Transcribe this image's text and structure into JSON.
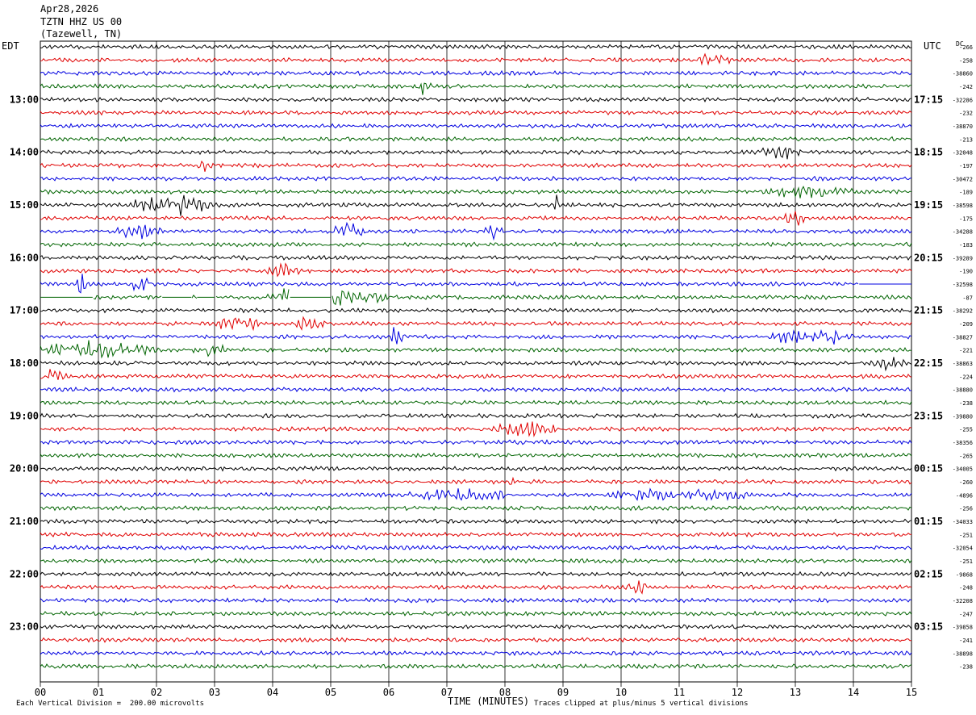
{
  "header": {
    "date": "Apr28,2026",
    "station": "TZTN HHZ US 00",
    "location": "(Tazewell, TN)"
  },
  "left_timezone": "EDT",
  "right_timezone": "UTC",
  "dc_label": "DC",
  "footer": {
    "scale_note": "Each Vertical Division =  200.00 microvolts",
    "clip_note": "Traces clipped at plus/minus 5 vertical divisions"
  },
  "colors": {
    "trace_cycle": [
      "#000000",
      "#e00000",
      "#0000e0",
      "#006400"
    ],
    "grid": "#000000",
    "background": "#ffffff"
  },
  "chart_data": {
    "type": "line",
    "description_of_axes": "helicorder",
    "xlabel": "TIME (MINUTES)",
    "x_ticks": [
      "00",
      "01",
      "02",
      "03",
      "04",
      "05",
      "06",
      "07",
      "08",
      "09",
      "10",
      "11",
      "12",
      "13",
      "14",
      "15"
    ],
    "xlim": [
      0,
      15
    ],
    "trace_count": 48,
    "left_hour_labels": [
      {
        "row": 4,
        "label": "13:00"
      },
      {
        "row": 8,
        "label": "14:00"
      },
      {
        "row": 12,
        "label": "15:00"
      },
      {
        "row": 16,
        "label": "16:00"
      },
      {
        "row": 20,
        "label": "17:00"
      },
      {
        "row": 24,
        "label": "18:00"
      },
      {
        "row": 28,
        "label": "19:00"
      },
      {
        "row": 32,
        "label": "20:00"
      },
      {
        "row": 36,
        "label": "21:00"
      },
      {
        "row": 40,
        "label": "22:00"
      },
      {
        "row": 44,
        "label": "23:00"
      }
    ],
    "right_hour_labels": [
      {
        "row": 4,
        "label": "17:15"
      },
      {
        "row": 8,
        "label": "18:15"
      },
      {
        "row": 12,
        "label": "19:15"
      },
      {
        "row": 16,
        "label": "20:15"
      },
      {
        "row": 20,
        "label": "21:15"
      },
      {
        "row": 24,
        "label": "22:15"
      },
      {
        "row": 28,
        "label": "23:15"
      },
      {
        "row": 32,
        "label": "00:15"
      },
      {
        "row": 36,
        "label": "01:15"
      },
      {
        "row": 40,
        "label": "02:15"
      },
      {
        "row": 44,
        "label": "03:15"
      }
    ],
    "dc_offsets": [
      "-266",
      "-258",
      "-38860",
      "-242",
      "-32286",
      "-232",
      "-38870",
      "-213",
      "-32048",
      "-197",
      "-30472",
      "-189",
      "-38598",
      "-175",
      "-34288",
      "-183",
      "-39289",
      "-190",
      "-32598",
      "-87",
      "-38292",
      "-209",
      "-38827",
      "-221",
      "-38863",
      "-224",
      "-38880",
      "-238",
      "-39880",
      "-255",
      "-38356",
      "-265",
      "-34005",
      "-260",
      "-4896",
      "-256",
      "-34033",
      "-251",
      "-32054",
      "-251",
      "-9868",
      "-248",
      "-32208",
      "-247",
      "-39858",
      "-241",
      "-38898",
      "-238"
    ],
    "events": [
      {
        "row": 1,
        "minute": 11.6,
        "amp": 1.6,
        "dur": 0.3
      },
      {
        "row": 3,
        "minute": 6.6,
        "amp": 2.2,
        "dur": 0.15
      },
      {
        "row": 9,
        "minute": 2.85,
        "amp": 1.8,
        "dur": 0.15
      },
      {
        "row": 8,
        "minute": 12.8,
        "amp": 1.4,
        "dur": 0.4
      },
      {
        "row": 11,
        "minute": 13.2,
        "amp": 1.4,
        "dur": 0.8
      },
      {
        "row": 12,
        "minute": 2.3,
        "amp": 3.0,
        "dur": 0.8
      },
      {
        "row": 12,
        "minute": 8.9,
        "amp": 3.0,
        "dur": 0.05
      },
      {
        "row": 13,
        "minute": 13.0,
        "amp": 2.0,
        "dur": 0.2
      },
      {
        "row": 14,
        "minute": 1.7,
        "amp": 2.0,
        "dur": 0.4
      },
      {
        "row": 14,
        "minute": 5.3,
        "amp": 2.6,
        "dur": 0.4
      },
      {
        "row": 14,
        "minute": 7.8,
        "amp": 1.6,
        "dur": 0.2
      },
      {
        "row": 17,
        "minute": 4.2,
        "amp": 1.6,
        "dur": 0.3
      },
      {
        "row": 18,
        "minute": 0.7,
        "amp": 3.0,
        "dur": 0.1
      },
      {
        "row": 18,
        "minute": 1.7,
        "amp": 2.6,
        "dur": 0.2
      },
      {
        "row": 19,
        "minute": 4.2,
        "amp": 3.5,
        "dur": 0.3
      },
      {
        "row": 19,
        "minute": 5.3,
        "amp": 2.4,
        "dur": 0.7
      },
      {
        "row": 21,
        "minute": 3.4,
        "amp": 2.2,
        "dur": 0.4
      },
      {
        "row": 21,
        "minute": 4.6,
        "amp": 1.8,
        "dur": 0.3
      },
      {
        "row": 22,
        "minute": 6.1,
        "amp": 2.2,
        "dur": 0.2
      },
      {
        "row": 22,
        "minute": 12.9,
        "amp": 2.2,
        "dur": 0.3
      },
      {
        "row": 22,
        "minute": 13.6,
        "amp": 2.0,
        "dur": 0.4
      },
      {
        "row": 23,
        "minute": 0.8,
        "amp": 2.4,
        "dur": 1.2
      },
      {
        "row": 23,
        "minute": 2.9,
        "amp": 2.0,
        "dur": 0.3
      },
      {
        "row": 24,
        "minute": 14.6,
        "amp": 1.8,
        "dur": 0.3
      },
      {
        "row": 25,
        "minute": 0.2,
        "amp": 1.4,
        "dur": 0.3
      },
      {
        "row": 29,
        "minute": 8.4,
        "amp": 2.0,
        "dur": 0.6
      },
      {
        "row": 33,
        "minute": 8.1,
        "amp": 1.8,
        "dur": 0.05
      },
      {
        "row": 34,
        "minute": 7.3,
        "amp": 1.4,
        "dur": 1.0
      },
      {
        "row": 34,
        "minute": 11.0,
        "amp": 1.4,
        "dur": 1.2
      },
      {
        "row": 41,
        "minute": 10.3,
        "amp": 1.4,
        "dur": 0.2
      }
    ],
    "gaps": [
      {
        "row": 18,
        "from_minute": 14.1,
        "to_minute": 15
      },
      {
        "row": 19,
        "from_minute": 0,
        "to_minute": 0.9
      },
      {
        "row": 19,
        "from_minute": 2.1,
        "to_minute": 2.6
      },
      {
        "row": 19,
        "from_minute": 2.7,
        "to_minute": 3.0
      },
      {
        "row": 19,
        "from_minute": 4.3,
        "to_minute": 5.0
      }
    ]
  }
}
